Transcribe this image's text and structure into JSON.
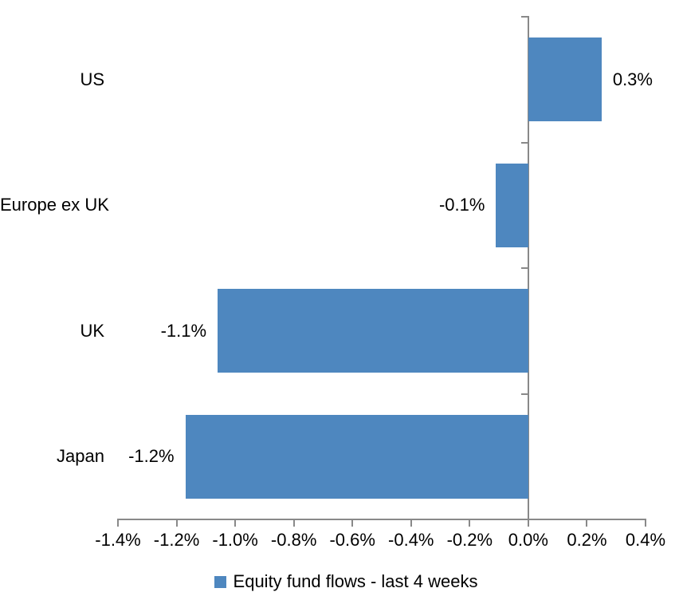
{
  "chart_data": {
    "type": "bar",
    "orientation": "horizontal",
    "title": "",
    "categories": [
      "US",
      "Europe ex UK",
      "UK",
      "Japan"
    ],
    "series": [
      {
        "name": "Equity fund flows - last 4 weeks",
        "values": [
          0.3,
          -0.1,
          -1.1,
          -1.2
        ],
        "values_precise": [
          0.25,
          -0.11,
          -1.06,
          -1.17
        ],
        "data_labels": [
          "0.3%",
          "-0.1%",
          "-1.1%",
          "-1.2%"
        ]
      }
    ],
    "xlabel": "",
    "ylabel": "",
    "x_axis": {
      "min": -1.4,
      "max": 0.4,
      "step": 0.2,
      "tick_labels": [
        "-1.4%",
        "-1.2%",
        "-1.0%",
        "-0.8%",
        "-0.6%",
        "-0.4%",
        "-0.2%",
        "0.0%",
        "0.2%",
        "0.4%"
      ]
    },
    "grid": false,
    "legend": {
      "position": "bottom",
      "entries": [
        "Equity fund flows - last 4 weeks"
      ]
    },
    "colors": {
      "bar": "#4E87BF",
      "axis": "#898989",
      "text": "#000000",
      "background": "#FFFFFF"
    }
  }
}
